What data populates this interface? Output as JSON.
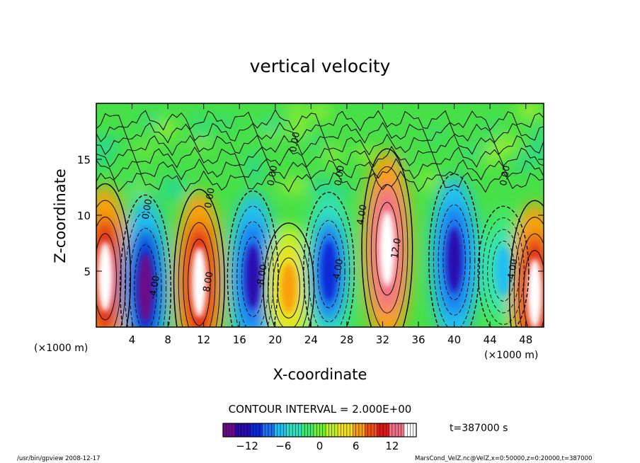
{
  "chart_data": {
    "type": "heatmap",
    "title": "vertical velocity",
    "xlabel": "X-coordinate",
    "ylabel": "Z-coordinate",
    "x_unit_left": "(×1000 m)",
    "x_unit_right": "(×1000 m)",
    "xlim": [
      0,
      50
    ],
    "ylim": [
      0,
      20
    ],
    "x_ticks": [
      4,
      8,
      12,
      16,
      20,
      24,
      28,
      32,
      36,
      40,
      44,
      48
    ],
    "y_ticks": [
      5,
      10,
      15
    ],
    "contour_interval_label": "CONTOUR INTERVAL = 2.000E+00",
    "time_label": "t=387000 s",
    "colorbar": {
      "ticks": [
        -12,
        -6,
        0,
        6,
        12
      ],
      "range": [
        -16,
        16
      ],
      "colors": [
        "#6a0a8a",
        "#2a0ab0",
        "#0a2ad8",
        "#1a70f0",
        "#20c0f0",
        "#30e0c0",
        "#40e870",
        "#70f030",
        "#c0f020",
        "#f0e020",
        "#f8a010",
        "#f05010",
        "#e01818",
        "#f0708a",
        "#ffffff"
      ]
    },
    "cells": [
      {
        "x": 1.0,
        "z": 4.5,
        "w": 14,
        "label": ""
      },
      {
        "x": 5.5,
        "z": 3.5,
        "w": -14,
        "label": "-4.00"
      },
      {
        "x": 11.5,
        "z": 4.0,
        "w": 14,
        "label": "8.00"
      },
      {
        "x": 17.5,
        "z": 4.5,
        "w": -12,
        "label": "-8.00"
      },
      {
        "x": 21.5,
        "z": 3.5,
        "w": 6,
        "label": ""
      },
      {
        "x": 26.0,
        "z": 5.0,
        "w": -10,
        "label": "-4.00"
      },
      {
        "x": 32.5,
        "z": 7.0,
        "w": 16,
        "label": "12.0"
      },
      {
        "x": 40.0,
        "z": 6.0,
        "w": -12,
        "label": ""
      },
      {
        "x": 45.5,
        "z": 5.0,
        "w": -6,
        "label": "-4.00"
      },
      {
        "x": 49.0,
        "z": 3.0,
        "w": 14,
        "label": ""
      }
    ],
    "contour_labels": [
      {
        "text": "0.00",
        "x": 6.0,
        "z": 10.5
      },
      {
        "text": "0.00",
        "x": 13.0,
        "z": 11.5
      },
      {
        "text": "0.00",
        "x": 20.0,
        "z": 13.5
      },
      {
        "text": "0.00",
        "x": 27.5,
        "z": 13.5
      },
      {
        "text": "4.00",
        "x": 30.0,
        "z": 10.0
      },
      {
        "text": "0.00",
        "x": 22.5,
        "z": 16.5
      },
      {
        "text": "0.00",
        "x": 46.0,
        "z": 13.5
      }
    ]
  },
  "footer": {
    "left": "/usr/bin/gpview  2008-12-17",
    "right": "MarsCond_VelZ.nc@VelZ,x=0:50000,z=0:20000,t=387000"
  }
}
